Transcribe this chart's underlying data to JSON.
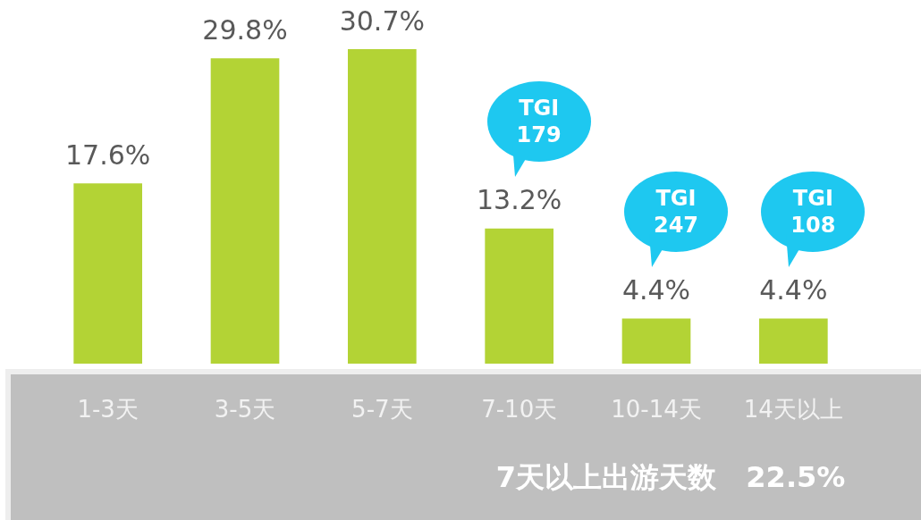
{
  "chart_data": {
    "type": "bar",
    "categories": [
      "1-3天",
      "3-5天",
      "5-7天",
      "7-10天",
      "10-14天",
      "14天以上"
    ],
    "values": [
      17.6,
      29.8,
      30.7,
      13.2,
      4.4,
      4.4
    ],
    "color": "#b3d335",
    "value_labels": [
      "17.6%",
      "29.8%",
      "30.7%",
      "13.2%",
      "4.4%",
      "4.4%"
    ],
    "annotations": [
      "TGI\n179",
      "TGI\n247",
      "TGI\n108",
      "7天以上出游天数   22.5%"
    ],
    "grid": false,
    "legend": false
  }
}
